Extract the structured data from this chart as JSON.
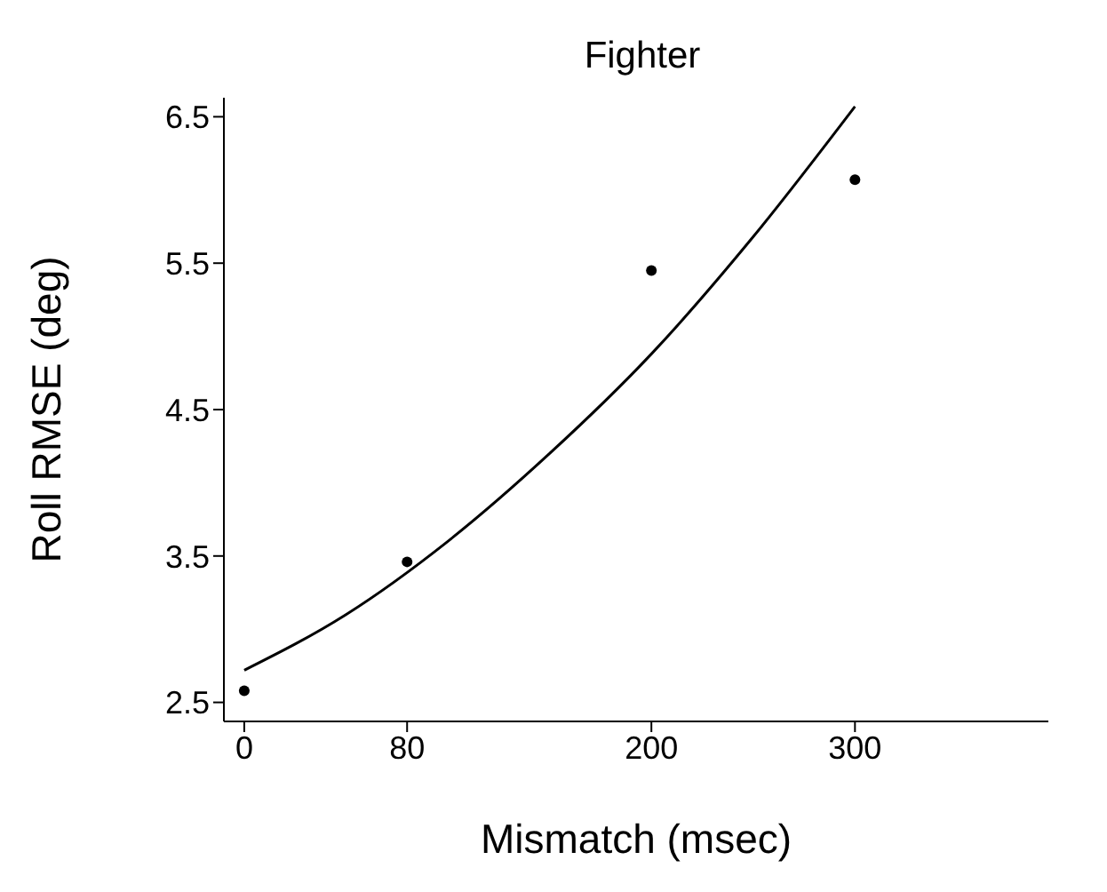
{
  "chart_data": {
    "type": "scatter",
    "title": "Fighter",
    "xlabel": "Mismatch  (msec)",
    "ylabel": "Roll  RMSE  (deg)",
    "xlim": [
      -10,
      395
    ],
    "xticks": [
      0,
      80,
      200,
      300
    ],
    "ylim": [
      2.37,
      6.63
    ],
    "yticks": [
      2.5,
      3.5,
      4.5,
      5.5,
      6.5
    ],
    "grid": false,
    "legend": false,
    "marker": "circle",
    "series": [
      {
        "color": "#000000",
        "x": [
          0,
          80,
          200,
          300
        ],
        "values": [
          2.58,
          3.46,
          5.45,
          6.07
        ]
      },
      {
        "type": "line",
        "color": "#000000",
        "marker": "none",
        "line_style": "solid",
        "x": [
          0,
          50,
          100,
          150,
          200,
          250,
          300
        ],
        "values": [
          2.72,
          3.1,
          3.6,
          4.2,
          4.88,
          5.68,
          6.57
        ]
      }
    ]
  }
}
